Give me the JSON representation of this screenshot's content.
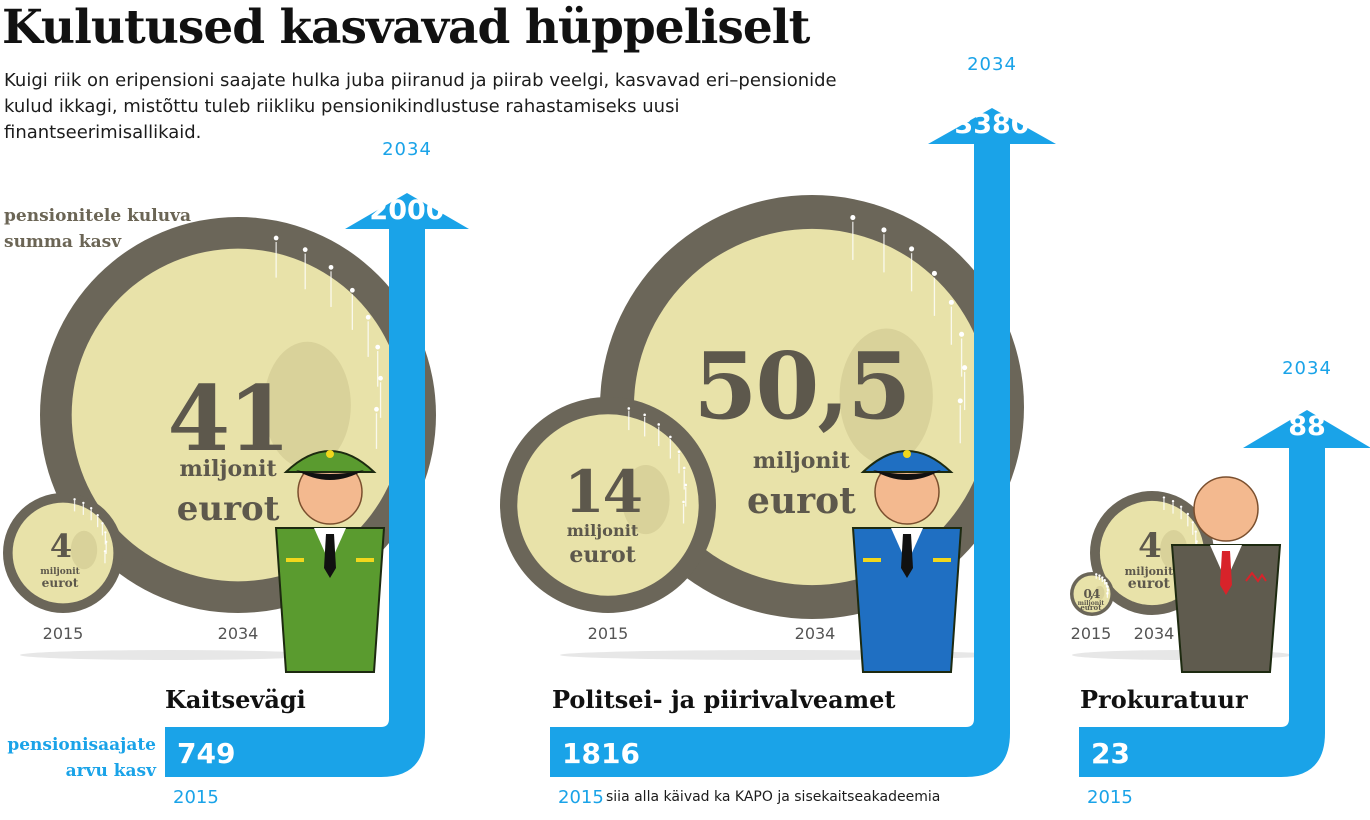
{
  "title": "Kulutused kasvavad hüppeliselt",
  "subtitle": "Kuigi riik on eripensioni saajate hulka juba piiranud ja piirab veelgi, kasvavad eri–pensionide kulud ikkagi, mistõttu tuleb riikliku pensionikindlustuse rahastamiseks uusi finantseerimisallikaid.",
  "labels": {
    "cost_growth_line1": "pensionitele kuluva",
    "cost_growth_line2": "summa kasv",
    "count_growth_line1": "pensionisaajate",
    "count_growth_line2": "arvu kasv"
  },
  "unit": {
    "line1": "miljonit",
    "line2": "eurot"
  },
  "note": "siia alla käivad ka KAPO ja sisekaitseakadeemia",
  "colors": {
    "arrow": "#1aa3e8",
    "coin_ring": "#6b6659",
    "coin_face": "#e8e2a9",
    "army": "#5a9b2f",
    "police": "#1f6fc2",
    "prosecutor": "#5f5b4e",
    "skin": "#f3b98f"
  },
  "agencies": [
    {
      "name": "Kaitsevägi",
      "uniform": "army",
      "cost_2015": "4",
      "cost_2034": "41",
      "year_start": "2015",
      "year_end": "2034",
      "pensioners_2015": "749",
      "pensioners_2034": "2000"
    },
    {
      "name": "Politsei- ja piirivalveamet",
      "uniform": "police",
      "cost_2015": "14",
      "cost_2034": "50,5",
      "year_start": "2015",
      "year_end": "2034",
      "pensioners_2015": "1816",
      "pensioners_2034": "3380"
    },
    {
      "name": "Prokuratuur",
      "uniform": "suit",
      "cost_2015": "0,4",
      "cost_2034": "4",
      "year_start": "2015",
      "year_end": "2034",
      "pensioners_2015": "23",
      "pensioners_2034": "88"
    }
  ]
}
